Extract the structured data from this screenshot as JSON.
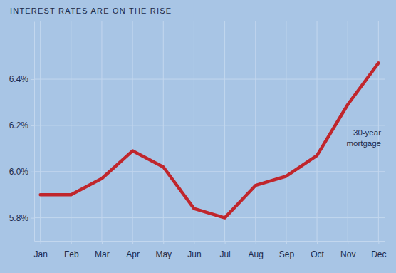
{
  "chart_data": {
    "type": "line",
    "title": "INTEREST RATES ARE ON THE RISE",
    "categories": [
      "Jan",
      "Feb",
      "Mar",
      "Apr",
      "May",
      "Jun",
      "Jul",
      "Aug",
      "Sep",
      "Oct",
      "Nov",
      "Dec"
    ],
    "values": [
      5.9,
      5.9,
      5.97,
      6.09,
      6.02,
      5.84,
      5.8,
      5.94,
      5.98,
      6.07,
      6.29,
      6.47
    ],
    "color": "#c0262c",
    "annotation": "30-year mortgage",
    "ylim": [
      5.7,
      6.65
    ],
    "yticks": [
      {
        "value": 5.8,
        "label": "5.8%"
      },
      {
        "value": 6.0,
        "label": "6.0%"
      },
      {
        "value": 6.2,
        "label": "6.2%"
      },
      {
        "value": 6.4,
        "label": "6.4%"
      }
    ],
    "grid": true
  }
}
